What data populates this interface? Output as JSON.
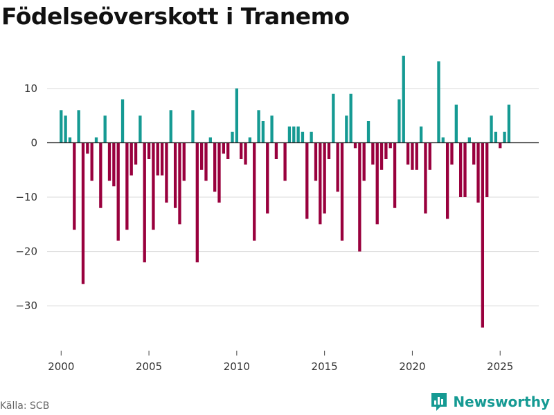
{
  "title": "Födelseöverskott i Tranemo",
  "source": "Källa: SCB",
  "brand": "Newsworthy",
  "colors": {
    "positive": "#159a93",
    "negative": "#99003d",
    "grid": "#d9d9d9",
    "zero": "#222222",
    "brand": "#159a93"
  },
  "chart_data": {
    "type": "bar",
    "title": "Födelseöverskott i Tranemo",
    "xlabel": "",
    "ylabel": "",
    "xlim": [
      1999.2,
      2027.2
    ],
    "ylim": [
      -38,
      18
    ],
    "yticks": [
      10,
      0,
      -10,
      -20,
      -30
    ],
    "ytick_labels": [
      "10",
      "0",
      "−10",
      "−20",
      "−30"
    ],
    "xticks": [
      2000,
      2005,
      2010,
      2015,
      2020,
      2025
    ],
    "xtick_labels": [
      "2000",
      "2005",
      "2010",
      "2015",
      "2020",
      "2025"
    ],
    "grid": true,
    "period": "quarter",
    "start": 2000,
    "values": [
      6,
      5,
      1,
      -16,
      6,
      -26,
      -2,
      -7,
      1,
      -12,
      5,
      -7,
      -8,
      -18,
      8,
      -16,
      -6,
      -4,
      5,
      -22,
      -3,
      -16,
      -6,
      -6,
      -11,
      6,
      -12,
      -15,
      -7,
      0,
      6,
      -22,
      -5,
      -7,
      1,
      -9,
      -11,
      -2,
      -3,
      2,
      10,
      -3,
      -4,
      1,
      -18,
      6,
      4,
      -13,
      5,
      -3,
      0,
      -7,
      3,
      3,
      3,
      2,
      -14,
      2,
      -7,
      -15,
      -13,
      -3,
      9,
      -9,
      -18,
      5,
      9,
      -1,
      -20,
      -7,
      4,
      -4,
      -15,
      -5,
      -3,
      -1,
      -12,
      8,
      16,
      -4,
      -5,
      -5,
      3,
      -13,
      -5,
      0,
      15,
      1,
      -14,
      -4,
      7,
      -10,
      -10,
      1,
      -4,
      -11,
      -34,
      -10,
      5,
      2,
      -1,
      2,
      7
    ]
  }
}
